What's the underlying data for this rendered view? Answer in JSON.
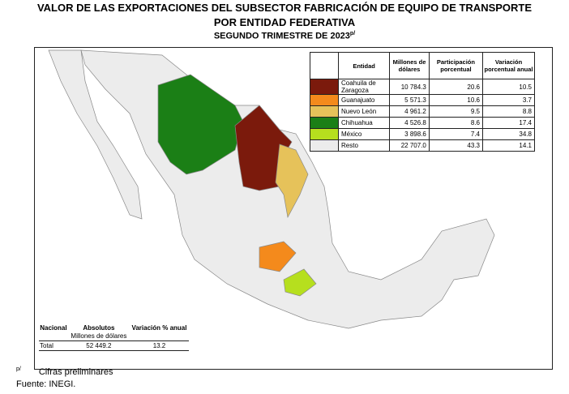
{
  "header": {
    "title_line1": "VALOR DE LAS EXPORTACIONES DEL SUBSECTOR FABRICACIÓN DE EQUIPO DE TRANSPORTE",
    "title_line2": "POR ENTIDAD FEDERATIVA",
    "subtitle": "SEGUNDO TRIMESTRE DE 2023",
    "subtitle_mark": "p/"
  },
  "table": {
    "columns": [
      "Entidad",
      "Millones de dólares",
      "Participación porcentual",
      "Variación porcentual anual"
    ],
    "rows": [
      {
        "color": "#7b1a0c",
        "cells": [
          "Coahuila de Zaragoza",
          "10 784.3",
          "20.6",
          "10.5"
        ]
      },
      {
        "color": "#f48a1c",
        "cells": [
          "Guanajuato",
          "5 571.3",
          "10.6",
          "3.7"
        ]
      },
      {
        "color": "#e6c25a",
        "cells": [
          "Nuevo León",
          "4 961.2",
          "9.5",
          "8.8"
        ]
      },
      {
        "color": "#1b7f16",
        "cells": [
          "Chihuahua",
          "4 526.8",
          "8.6",
          "17.4"
        ]
      },
      {
        "color": "#b6df1e",
        "cells": [
          "México",
          "3 898.6",
          "7.4",
          "34.8"
        ]
      },
      {
        "color": "#ececec",
        "cells": [
          "Resto",
          "22 707.0",
          "43.3",
          "14.1"
        ]
      }
    ]
  },
  "national": {
    "columns": [
      "Nacional",
      "Absolutos",
      "Variación % anual"
    ],
    "subheader": "Millones de dólares",
    "row": [
      "Total",
      "52 449.2",
      "13.2"
    ]
  },
  "footer": {
    "mark": "p/",
    "note": "Cifras preliminares",
    "source": "Fuente: INEGI."
  }
}
